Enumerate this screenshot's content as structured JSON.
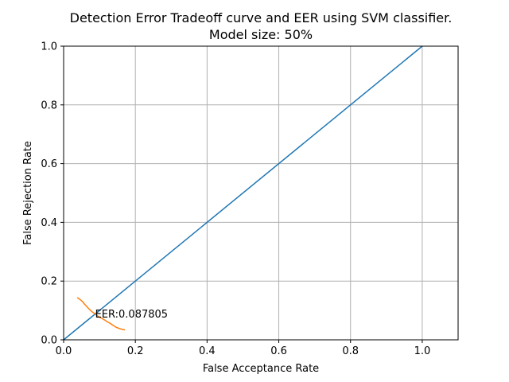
{
  "chart_data": {
    "type": "line",
    "title_line1": "Detection Error Tradeoff curve and EER using SVM classifier.",
    "title_line2": "Model size: 50%",
    "xlabel": "False Acceptance Rate",
    "ylabel": "False Rejection Rate",
    "xlim": [
      0.0,
      1.1
    ],
    "ylim": [
      0.0,
      1.0
    ],
    "xticks": [
      0.0,
      0.2,
      0.4,
      0.6,
      0.8,
      1.0
    ],
    "xtick_labels": [
      "0.0",
      "0.2",
      "0.4",
      "0.6",
      "0.8",
      "1.0"
    ],
    "yticks": [
      0.0,
      0.2,
      0.4,
      0.6,
      0.8,
      1.0
    ],
    "ytick_labels": [
      "0.0",
      "0.2",
      "0.4",
      "0.6",
      "0.8",
      "1.0"
    ],
    "grid": true,
    "series": [
      {
        "color": "#1f77b4",
        "x": [
          0.0,
          1.0
        ],
        "y": [
          0.0,
          1.0
        ]
      },
      {
        "color": "#ff7f0e",
        "x": [
          0.038,
          0.045,
          0.052,
          0.058,
          0.064,
          0.07,
          0.076,
          0.082,
          0.088,
          0.094,
          0.1,
          0.108,
          0.115,
          0.122,
          0.13,
          0.138,
          0.146,
          0.154,
          0.162,
          0.171
        ],
        "y": [
          0.144,
          0.138,
          0.131,
          0.122,
          0.114,
          0.106,
          0.099,
          0.093,
          0.088,
          0.082,
          0.077,
          0.072,
          0.067,
          0.061,
          0.056,
          0.049,
          0.043,
          0.039,
          0.036,
          0.034
        ]
      }
    ],
    "annotations": [
      {
        "text": "EER:0.087805",
        "x": 0.087805,
        "y": 0.087805
      }
    ]
  }
}
